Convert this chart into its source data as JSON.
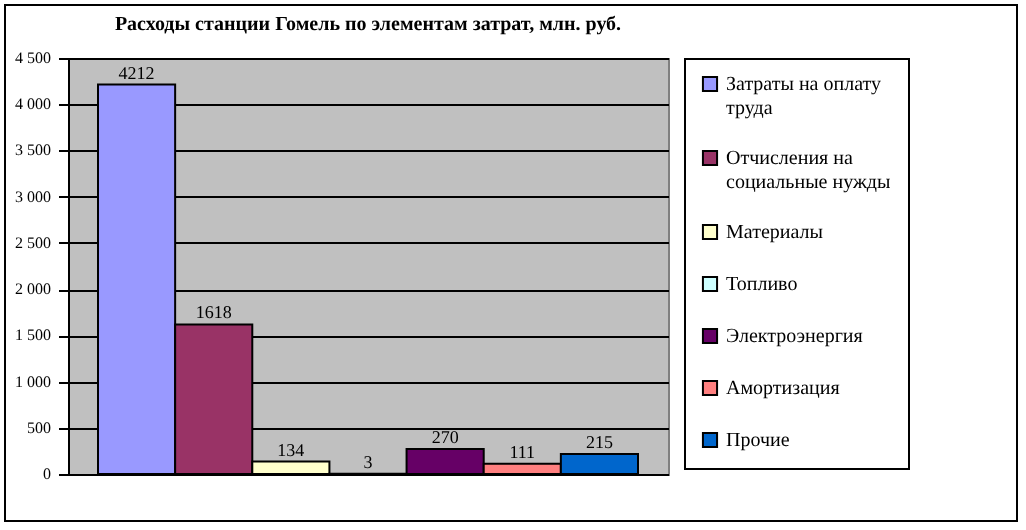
{
  "chart_data": {
    "type": "bar",
    "title": "Расходы станции Гомель по элементам затрат, млн. руб.",
    "categories": [
      null
    ],
    "series": [
      {
        "name": "Затраты на оплату труда",
        "color": "#9999ff",
        "values": [
          4212
        ]
      },
      {
        "name": "Отчисления на социальные нужды",
        "color": "#993366",
        "values": [
          1618
        ]
      },
      {
        "name": "Материалы",
        "color": "#ffffcc",
        "values": [
          134
        ]
      },
      {
        "name": "Топливо",
        "color": "#ccffff",
        "values": [
          3
        ]
      },
      {
        "name": "Электроэнергия",
        "color": "#660066",
        "values": [
          270
        ]
      },
      {
        "name": "Амортизация",
        "color": "#ff8080",
        "values": [
          111
        ]
      },
      {
        "name": "Прочие",
        "color": "#0066cc",
        "values": [
          215
        ]
      }
    ],
    "ylim": [
      0,
      4500
    ],
    "yticks": [
      0,
      500,
      {
        "value": 1000,
        "label": "1 000"
      },
      {
        "value": 1500,
        "label": "1 500"
      },
      {
        "value": 2000,
        "label": "2 000"
      },
      {
        "value": 2500,
        "label": "2 500"
      },
      {
        "value": 3000,
        "label": "3 000"
      },
      {
        "value": 3500,
        "label": "3 500"
      },
      {
        "value": 4000,
        "label": "4 000"
      },
      {
        "value": 4500,
        "label": "4 500"
      }
    ],
    "grid": "y",
    "legend": "right",
    "data_labels": true
  }
}
